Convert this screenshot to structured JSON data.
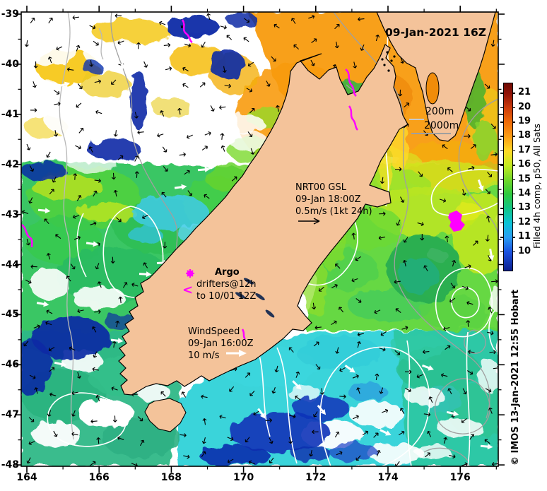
{
  "datestamp": "09-Jan-2021 16Z",
  "axes": {
    "x_ticks": [
      164,
      166,
      168,
      170,
      172,
      174,
      176
    ],
    "x_minor": [
      165,
      167,
      169,
      171,
      173,
      175,
      177
    ],
    "y_ticks": [
      -39,
      -40,
      -41,
      -42,
      -43,
      -44,
      -45,
      -46,
      -47,
      -48
    ],
    "y_minor": [
      -39.5,
      -40.5,
      -41.5,
      -42.5,
      -43.5,
      -44.5,
      -45.5,
      -46.5,
      -47.5
    ]
  },
  "colorbar": {
    "label": "Filled 4h comp, p50, All Sats",
    "ticks": [
      21,
      20,
      19,
      18,
      17,
      16,
      15,
      14,
      13,
      12,
      11,
      10
    ]
  },
  "annotations": {
    "depth_200": "200m",
    "depth_2000": "2000m",
    "current_key": [
      "NRT00 GSL",
      "09-Jan 18:00Z",
      "0.5m/s (1kt 24h)"
    ],
    "argo_title": "Argo",
    "argo_lines": [
      "drifters@12h",
      "to 10/01 12Z"
    ],
    "argo_drifter_glyph": "<",
    "wind_key": [
      "WindSpeed",
      "09-Jan 16:00Z",
      "10 m/s"
    ]
  },
  "credit": "© IMOS 13-Jan-2021 12:55 Hobart",
  "colors": {
    "land": "#f4c39a",
    "magenta": "#ff00ff",
    "contour_200m": "#c9c9c9",
    "contour_2000m": "#9f9f9f",
    "ssh_contour": "#ffffff"
  }
}
